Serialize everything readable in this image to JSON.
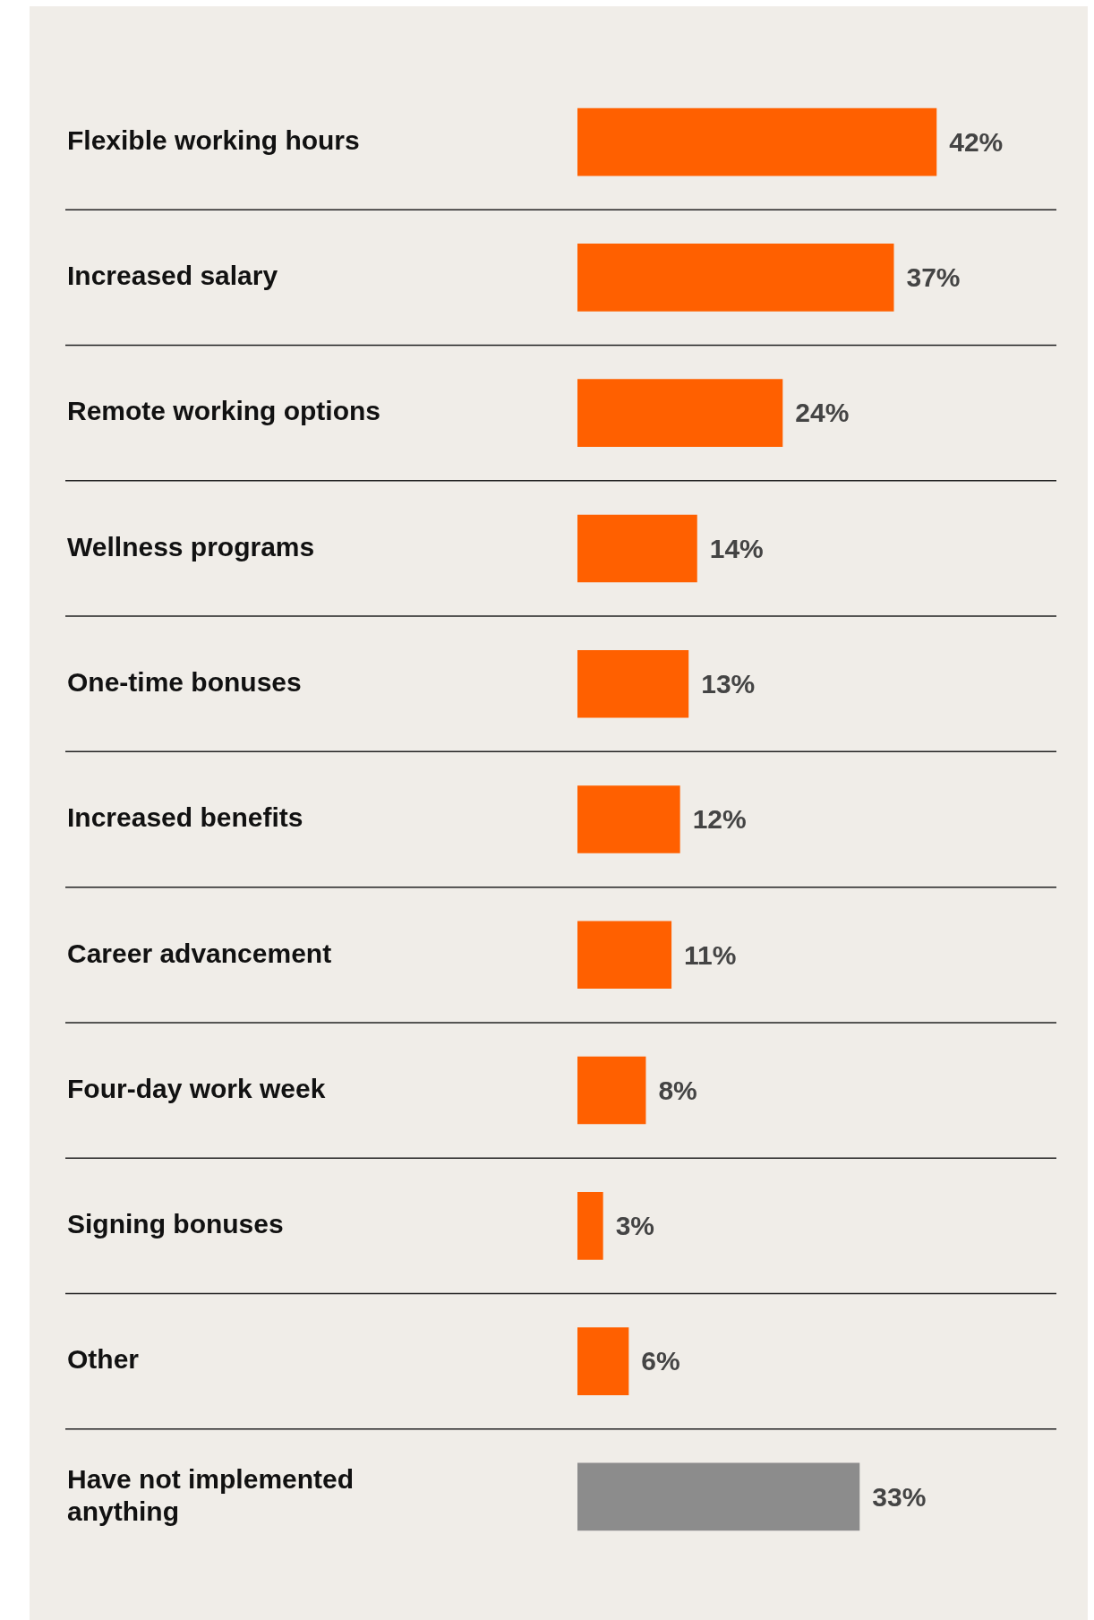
{
  "chart_data": {
    "type": "bar",
    "orientation": "horizontal",
    "categories": [
      "Flexible working hours",
      "Increased salary",
      "Remote working options",
      "Wellness programs",
      "One-time bonuses",
      "Increased benefits",
      "Career advancement",
      "Four-day work week",
      "Signing bonuses",
      "Other",
      "Have not implemented anything"
    ],
    "values": [
      42,
      37,
      24,
      14,
      13,
      12,
      11,
      8,
      3,
      6,
      33
    ],
    "colors": [
      "#ff6000",
      "#ff6000",
      "#ff6000",
      "#ff6000",
      "#ff6000",
      "#ff6000",
      "#ff6000",
      "#ff6000",
      "#ff6000",
      "#ff6000",
      "#8c8c8c"
    ],
    "value_labels": [
      "42%",
      "37%",
      "24%",
      "14%",
      "13%",
      "12%",
      "11%",
      "8%",
      "3%",
      "6%",
      "33%"
    ],
    "xlim": [
      0,
      56
    ],
    "grid": "y",
    "legend": false,
    "tick_labels": "y"
  }
}
